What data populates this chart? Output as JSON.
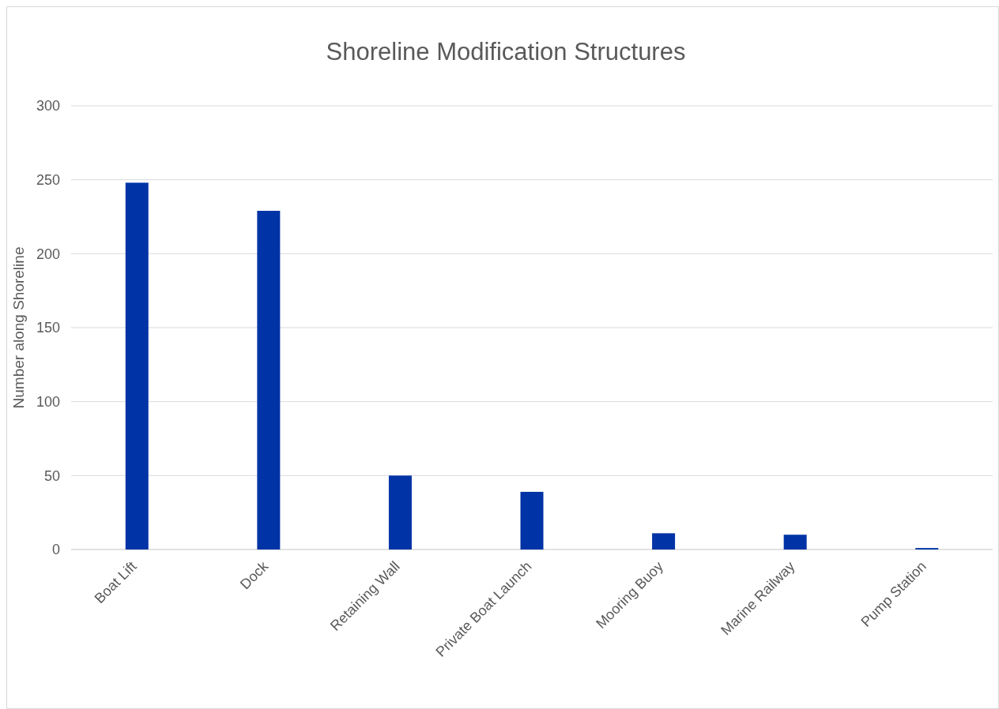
{
  "chart_data": {
    "type": "bar",
    "title": "Shoreline Modification Structures",
    "ylabel": "Number along Shoreline",
    "categories": [
      "Boat Lift",
      "Dock",
      "Retaining Wall",
      "Private Boat Launch",
      "Mooring Buoy",
      "Marine Railway",
      "Pump Station"
    ],
    "values": [
      248,
      229,
      50,
      39,
      11,
      10,
      1
    ],
    "color": "#0033a6",
    "ylim": [
      0,
      300
    ],
    "yticks": [
      0,
      50,
      100,
      150,
      200,
      250,
      300
    ],
    "grid": "y"
  }
}
